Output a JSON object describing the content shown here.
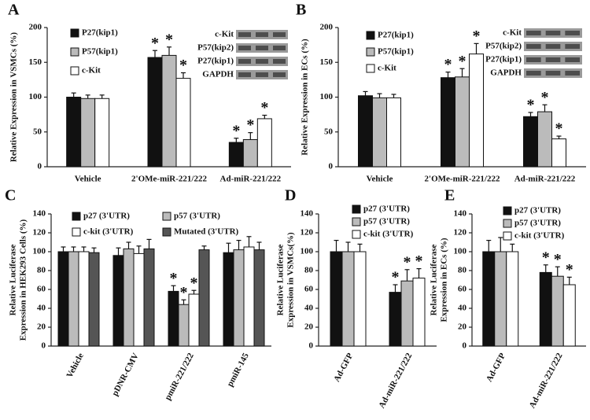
{
  "chart_data": [
    {
      "type": "bar",
      "panel": "A",
      "ylabel": "Relative Expression in VSMCs (%)",
      "categories": [
        "Vehicle",
        "2'OMe-miR-221/222",
        "Ad-miR-221/222"
      ],
      "ylim": [
        0,
        200
      ],
      "yticks": [
        0,
        50,
        100,
        150,
        200
      ],
      "blot_labels": [
        "c-Kit",
        "P57(kip2)",
        "P27(kip1)",
        "GAPDH"
      ],
      "series": [
        {
          "name": "P27(kip1)",
          "color": "#111111",
          "values": [
            100,
            157,
            35
          ],
          "errors": [
            6,
            10,
            6
          ],
          "marks": [
            null,
            "*",
            "*"
          ]
        },
        {
          "name": "P57(kip1)",
          "color": "#bbbbbb",
          "values": [
            98,
            160,
            39
          ],
          "errors": [
            5,
            12,
            10
          ],
          "marks": [
            null,
            "*",
            "*"
          ]
        },
        {
          "name": "c-Kit",
          "color": "#ffffff",
          "values": [
            98,
            127,
            69
          ],
          "errors": [
            5,
            8,
            5
          ],
          "marks": [
            null,
            "*",
            "*"
          ]
        }
      ]
    },
    {
      "type": "bar",
      "panel": "B",
      "ylabel": "Relative Expression in ECs (%)",
      "categories": [
        "Vehicle",
        "2'OMe-miR-221/222",
        "Ad-miR-221/222"
      ],
      "ylim": [
        0,
        200
      ],
      "yticks": [
        0,
        50,
        100,
        150,
        200
      ],
      "blot_labels": [
        "c-Kit",
        "P57(kip2)",
        "P27(kip1)",
        "GAPDH"
      ],
      "series": [
        {
          "name": "P27(kip1)",
          "color": "#111111",
          "values": [
            102,
            128,
            72
          ],
          "errors": [
            6,
            8,
            6
          ],
          "marks": [
            null,
            "*",
            "*"
          ]
        },
        {
          "name": "P57(kip1)",
          "color": "#bbbbbb",
          "values": [
            99,
            129,
            79
          ],
          "errors": [
            6,
            12,
            10
          ],
          "marks": [
            null,
            "*",
            "*"
          ]
        },
        {
          "name": "c-Kit",
          "color": "#ffffff",
          "values": [
            99,
            162,
            40
          ],
          "errors": [
            5,
            15,
            4
          ],
          "marks": [
            null,
            "*",
            "*"
          ]
        }
      ]
    },
    {
      "type": "bar",
      "panel": "C",
      "ylabel": [
        "Relative Luciferase",
        "Expression in HEK293 Cells (%)"
      ],
      "categories": [
        "Vehicle",
        "pDNR-CMV",
        "pmiR-221/222",
        "pmiR-145"
      ],
      "ylim": [
        0,
        140
      ],
      "yticks": [
        0,
        20,
        40,
        60,
        80,
        100,
        120,
        140
      ],
      "series": [
        {
          "name": "p27 (3'UTR)",
          "color": "#111111",
          "values": [
            100,
            96,
            58,
            99
          ],
          "errors": [
            5,
            8,
            6,
            10
          ],
          "marks": [
            null,
            null,
            "*",
            null
          ]
        },
        {
          "name": "p57 (3'UTR)",
          "color": "#bbbbbb",
          "values": [
            100,
            103,
            44,
            102
          ],
          "errors": [
            5,
            7,
            5,
            10
          ],
          "marks": [
            null,
            null,
            "*",
            null
          ]
        },
        {
          "name": "c-kit (3'UTR)",
          "color": "#ffffff",
          "values": [
            100,
            98,
            55,
            105
          ],
          "errors": [
            5,
            8,
            4,
            11
          ],
          "marks": [
            null,
            null,
            "*",
            null
          ]
        },
        {
          "name": "Mutated (3'UTR)",
          "color": "#555555",
          "values": [
            99,
            103,
            102,
            102
          ],
          "errors": [
            5,
            10,
            4,
            8
          ],
          "marks": [
            null,
            null,
            null,
            null
          ]
        }
      ]
    },
    {
      "type": "bar",
      "panel": "D",
      "ylabel": [
        "Relative Luciferase",
        "Expression in VSMCs(%)"
      ],
      "categories": [
        "Ad-GFP",
        "Ad-miR-221/222"
      ],
      "ylim": [
        0,
        140
      ],
      "yticks": [
        0,
        20,
        40,
        60,
        80,
        100,
        120,
        140
      ],
      "series": [
        {
          "name": "p27 (3'UTR)",
          "color": "#111111",
          "values": [
            100,
            57
          ],
          "errors": [
            12,
            8
          ],
          "marks": [
            null,
            "*"
          ]
        },
        {
          "name": "p57 (3'UTR)",
          "color": "#bbbbbb",
          "values": [
            100,
            69
          ],
          "errors": [
            10,
            12
          ],
          "marks": [
            null,
            "*"
          ]
        },
        {
          "name": "c-kit (3'UTR)",
          "color": "#ffffff",
          "values": [
            100,
            72
          ],
          "errors": [
            8,
            10
          ],
          "marks": [
            null,
            "*"
          ]
        }
      ]
    },
    {
      "type": "bar",
      "panel": "E",
      "ylabel": [
        "Relative Luciferase",
        "Expression in ECs (%)"
      ],
      "categories": [
        "Ad-GFP",
        "Ad-miR-221/222"
      ],
      "ylim": [
        0,
        140
      ],
      "yticks": [
        0,
        20,
        40,
        60,
        80,
        100,
        120,
        140
      ],
      "series": [
        {
          "name": "p27 (3'UTR)",
          "color": "#111111",
          "values": [
            100,
            78
          ],
          "errors": [
            12,
            8
          ],
          "marks": [
            null,
            "*"
          ]
        },
        {
          "name": "p57 (3'UTR)",
          "color": "#bbbbbb",
          "values": [
            100,
            74
          ],
          "errors": [
            15,
            10
          ],
          "marks": [
            null,
            "*"
          ]
        },
        {
          "name": "c-kit (3'UTR)",
          "color": "#ffffff",
          "values": [
            100,
            65
          ],
          "errors": [
            8,
            8
          ],
          "marks": [
            null,
            "*"
          ]
        }
      ]
    }
  ]
}
